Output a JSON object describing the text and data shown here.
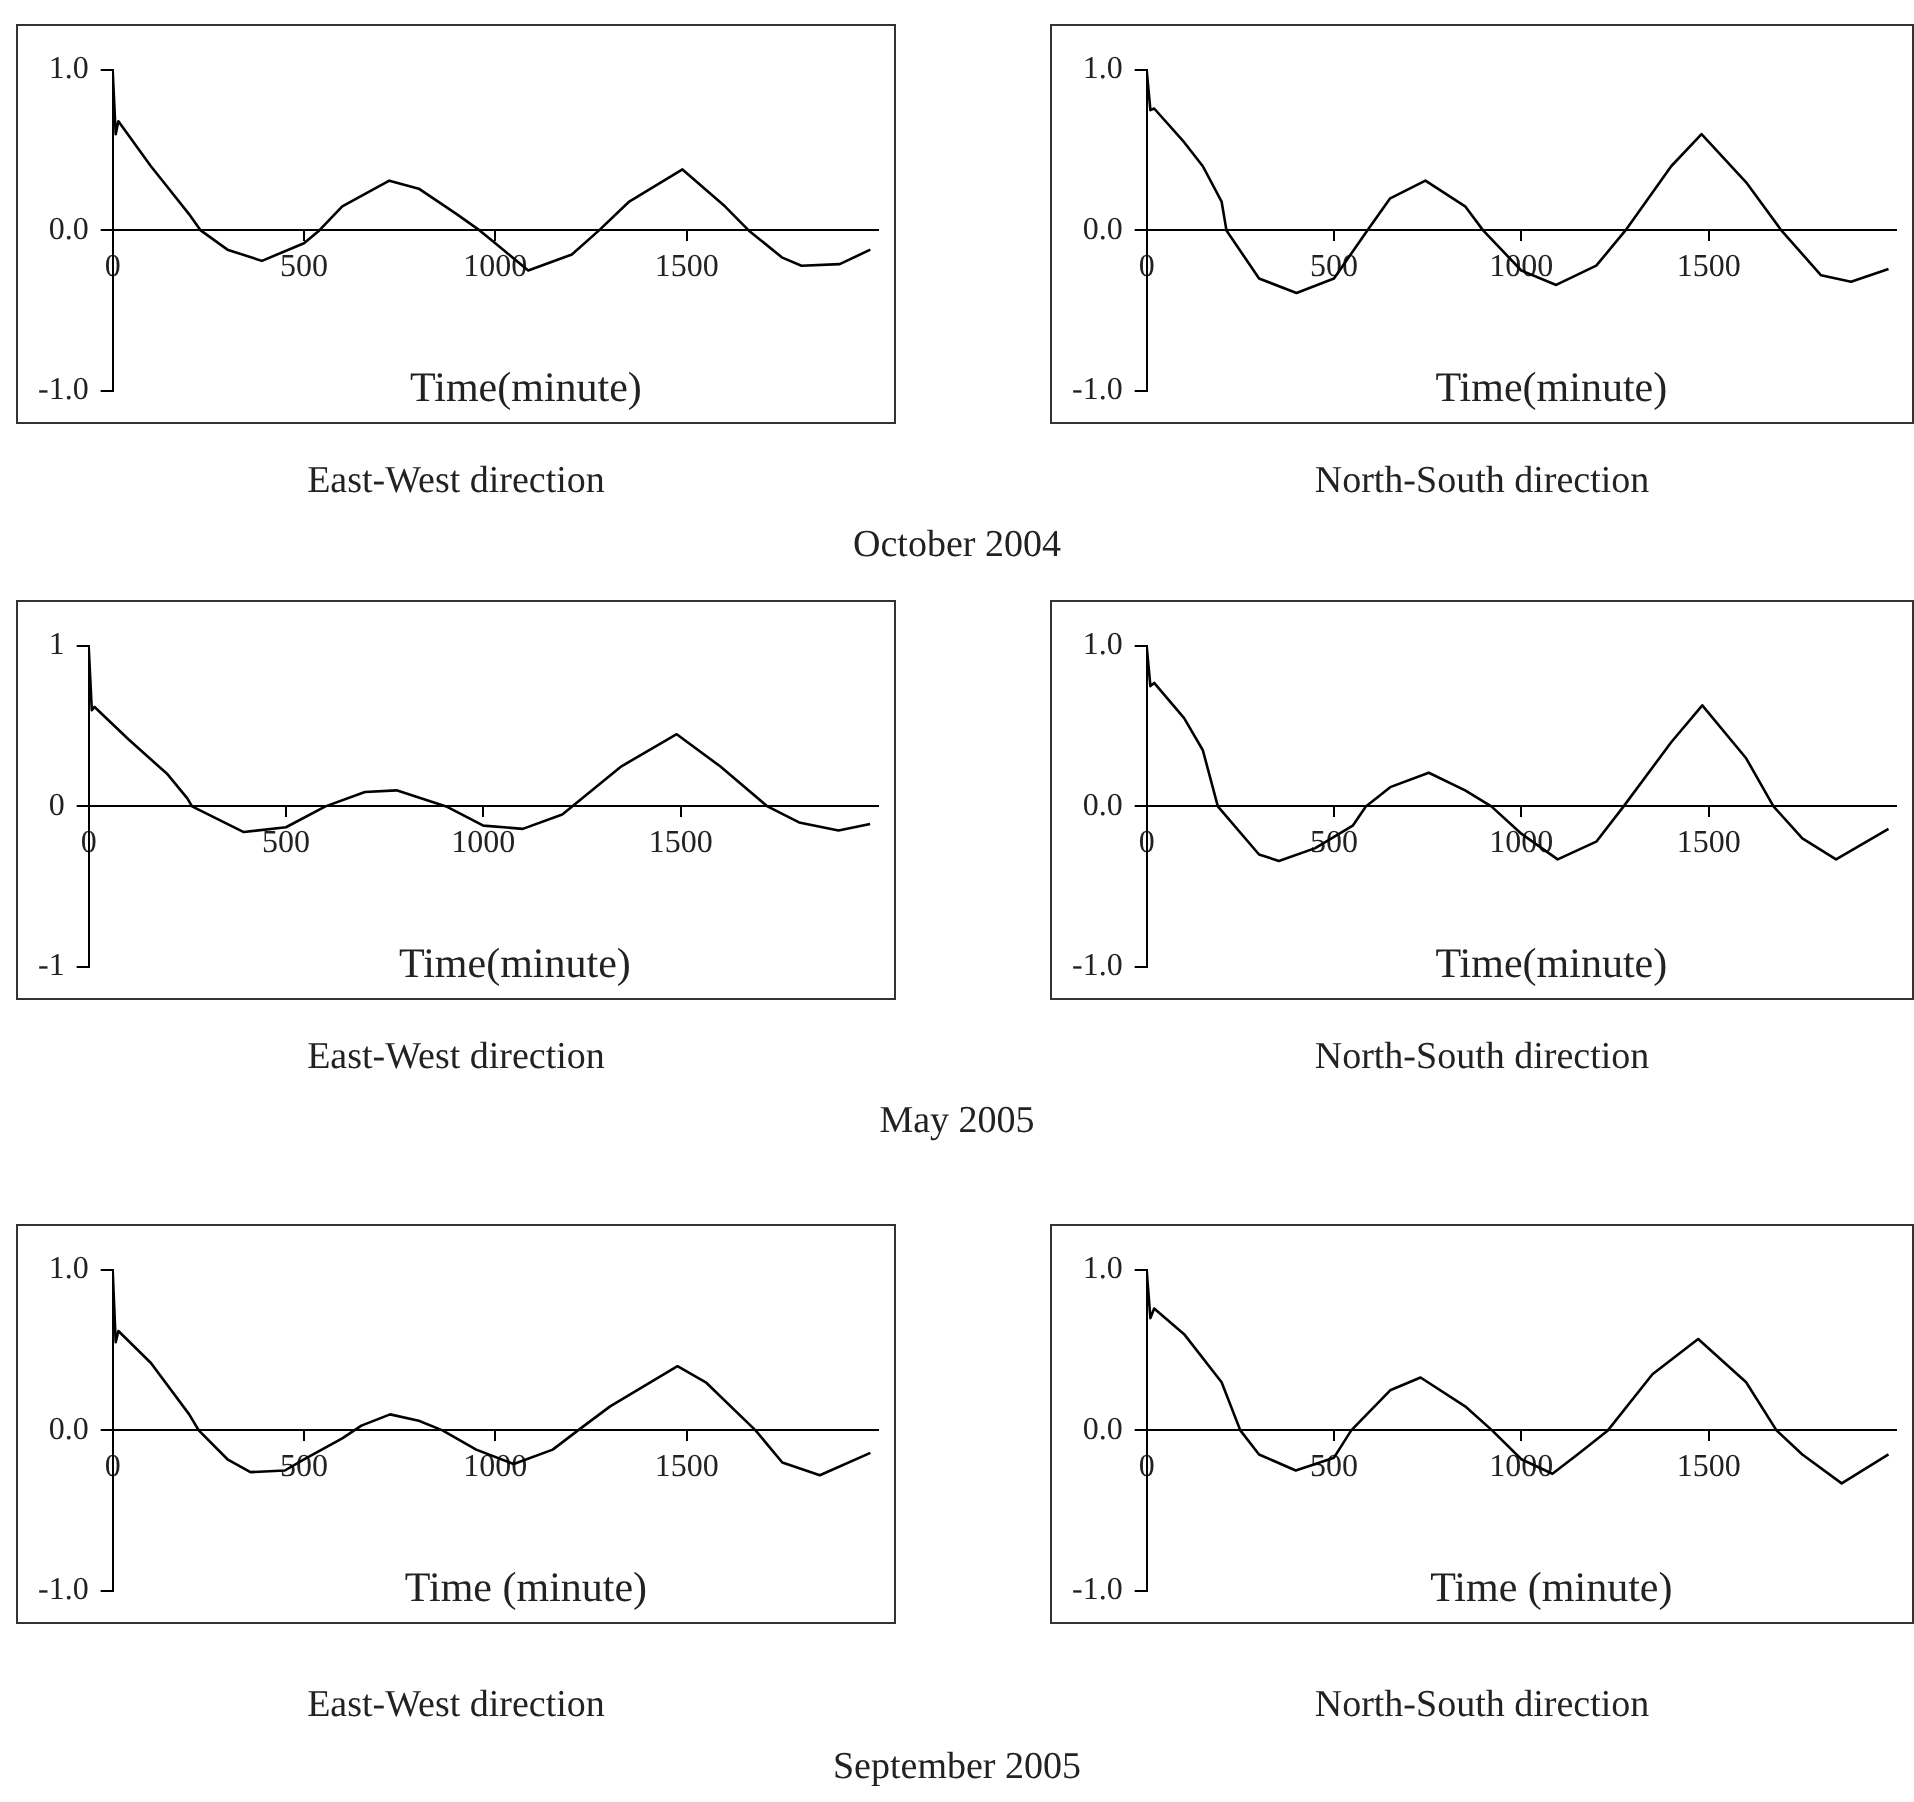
{
  "chart_data": [
    {
      "type": "line",
      "title": "East-West direction",
      "xlabel": "Time(minute)",
      "annotations": [
        "October 2004"
      ],
      "xlim": [
        0,
        2000
      ],
      "ylim": [
        -1,
        1
      ],
      "xticks": [
        0,
        500,
        1000,
        1500
      ],
      "yticks": [
        {
          "value": -1,
          "label": "-1.0"
        },
        {
          "value": 0,
          "label": "0.0"
        },
        {
          "value": 1,
          "label": "1.0"
        }
      ],
      "grid": false,
      "legend": false,
      "marker": "none",
      "line_style": "solid",
      "series": [
        {
          "color": "#000000",
          "x": [
            0,
            8,
            15,
            100,
            150,
            200,
            230,
            300,
            390,
            500,
            540,
            600,
            723,
            800,
            900,
            959,
            1000,
            1086,
            1200,
            1271,
            1350,
            1489,
            1600,
            1662,
            1750,
            1800,
            1900,
            1980
          ],
          "values": [
            1.0,
            0.6,
            0.68,
            0.4,
            0.25,
            0.1,
            0,
            -0.12,
            -0.19,
            -0.08,
            0,
            0.15,
            0.31,
            0.26,
            0.1,
            0,
            -0.08,
            -0.25,
            -0.15,
            0,
            0.18,
            0.38,
            0.15,
            0,
            -0.17,
            -0.22,
            -0.21,
            -0.12
          ]
        }
      ]
    },
    {
      "type": "line",
      "title": "North-South direction",
      "xlabel": "Time(minute)",
      "xlim": [
        0,
        2000
      ],
      "ylim": [
        -1,
        1
      ],
      "xticks": [
        0,
        500,
        1000,
        1500
      ],
      "yticks": [
        {
          "value": -1,
          "label": "-1.0"
        },
        {
          "value": 0,
          "label": "0.0"
        },
        {
          "value": 1,
          "label": "1.0"
        }
      ],
      "grid": false,
      "legend": false,
      "marker": "none",
      "line_style": "solid",
      "series": [
        {
          "color": "#000000",
          "x": [
            0,
            10,
            20,
            100,
            150,
            200,
            213,
            300,
            400,
            500,
            589,
            650,
            744,
            850,
            898,
            1000,
            1093,
            1200,
            1278,
            1400,
            1481,
            1600,
            1694,
            1800,
            1880,
            1980
          ],
          "values": [
            1.0,
            0.75,
            0.76,
            0.55,
            0.4,
            0.18,
            0,
            -0.3,
            -0.39,
            -0.3,
            0,
            0.2,
            0.31,
            0.15,
            0,
            -0.25,
            -0.34,
            -0.22,
            0,
            0.4,
            0.6,
            0.3,
            0,
            -0.28,
            -0.32,
            -0.24
          ]
        }
      ]
    },
    {
      "type": "line",
      "title": "East-West direction",
      "xlabel": "Time(minute)",
      "annotations": [
        "May 2005"
      ],
      "xlim": [
        0,
        2000
      ],
      "ylim": [
        -1,
        1
      ],
      "xticks": [
        0,
        500,
        1000,
        1500
      ],
      "yticks": [
        -1,
        0,
        1
      ],
      "grid": false,
      "legend": false,
      "marker": "none",
      "line_style": "solid",
      "series": [
        {
          "color": "#000000",
          "x": [
            0,
            8,
            15,
            100,
            200,
            250,
            262,
            393,
            500,
            600,
            700,
            780,
            906,
            1000,
            1100,
            1200,
            1225,
            1350,
            1490,
            1600,
            1720,
            1800,
            1900,
            1980
          ],
          "values": [
            1.0,
            0.6,
            0.62,
            0.42,
            0.2,
            0.05,
            0,
            -0.16,
            -0.13,
            0,
            0.09,
            0.1,
            0,
            -0.12,
            -0.14,
            -0.05,
            0,
            0.25,
            0.45,
            0.25,
            0,
            -0.1,
            -0.15,
            -0.11
          ]
        }
      ]
    },
    {
      "type": "line",
      "title": "North-South direction",
      "xlabel": "Time(minute)",
      "xlim": [
        0,
        2000
      ],
      "ylim": [
        -1,
        1
      ],
      "xticks": [
        0,
        500,
        1000,
        1500
      ],
      "yticks": [
        {
          "value": -1,
          "label": "-1.0"
        },
        {
          "value": 0,
          "label": "0.0"
        },
        {
          "value": 1,
          "label": "1.0"
        }
      ],
      "grid": false,
      "legend": false,
      "marker": "none",
      "line_style": "solid",
      "series": [
        {
          "color": "#000000",
          "x": [
            0,
            10,
            20,
            100,
            150,
            190,
            300,
            353,
            450,
            550,
            585,
            650,
            753,
            850,
            920,
            1000,
            1097,
            1200,
            1273,
            1400,
            1483,
            1600,
            1673,
            1750,
            1840,
            1980
          ],
          "values": [
            1.0,
            0.75,
            0.77,
            0.55,
            0.35,
            0,
            -0.3,
            -0.34,
            -0.26,
            -0.12,
            0,
            0.12,
            0.21,
            0.1,
            0,
            -0.17,
            -0.33,
            -0.22,
            0,
            0.4,
            0.63,
            0.3,
            0,
            -0.2,
            -0.33,
            -0.14
          ]
        }
      ]
    },
    {
      "type": "line",
      "title": "East-West direction",
      "xlabel": "Time (minute)",
      "annotations": [
        "September 2005"
      ],
      "xlim": [
        0,
        2000
      ],
      "ylim": [
        -1,
        1
      ],
      "xticks": [
        0,
        500,
        1000,
        1500
      ],
      "yticks": [
        {
          "value": -1,
          "label": "-1.0"
        },
        {
          "value": 0,
          "label": "0.0"
        },
        {
          "value": 1,
          "label": "1.0"
        }
      ],
      "grid": false,
      "legend": false,
      "marker": "none",
      "line_style": "solid",
      "series": [
        {
          "color": "#000000",
          "x": [
            0,
            8,
            15,
            100,
            200,
            225,
            300,
            360,
            450,
            500,
            600,
            650,
            725,
            800,
            862,
            950,
            1048,
            1150,
            1216,
            1300,
            1476,
            1550,
            1680,
            1750,
            1848,
            1980
          ],
          "values": [
            1.0,
            0.55,
            0.62,
            0.42,
            0.1,
            0,
            -0.18,
            -0.26,
            -0.25,
            -0.18,
            -0.05,
            0.03,
            0.1,
            0.06,
            0,
            -0.12,
            -0.21,
            -0.12,
            0,
            0.15,
            0.4,
            0.3,
            0,
            -0.2,
            -0.28,
            -0.14
          ]
        }
      ]
    },
    {
      "type": "line",
      "title": "North-South direction",
      "xlabel": "Time (minute)",
      "xlim": [
        0,
        2000
      ],
      "ylim": [
        -1,
        1
      ],
      "xticks": [
        0,
        500,
        1000,
        1500
      ],
      "yticks": [
        {
          "value": -1,
          "label": "-1.0"
        },
        {
          "value": 0,
          "label": "0.0"
        },
        {
          "value": 1,
          "label": "1.0"
        }
      ],
      "grid": false,
      "legend": false,
      "marker": "none",
      "line_style": "solid",
      "series": [
        {
          "color": "#000000",
          "x": [
            0,
            10,
            20,
            100,
            200,
            250,
            300,
            398,
            500,
            546,
            650,
            731,
            850,
            922,
            1000,
            1083,
            1150,
            1231,
            1350,
            1472,
            1600,
            1681,
            1750,
            1855,
            1980
          ],
          "values": [
            1.0,
            0.7,
            0.76,
            0.6,
            0.3,
            0,
            -0.15,
            -0.25,
            -0.17,
            0,
            0.25,
            0.33,
            0.15,
            0,
            -0.18,
            -0.27,
            -0.15,
            0,
            0.35,
            0.57,
            0.3,
            0,
            -0.15,
            -0.33,
            -0.15
          ]
        }
      ]
    }
  ]
}
